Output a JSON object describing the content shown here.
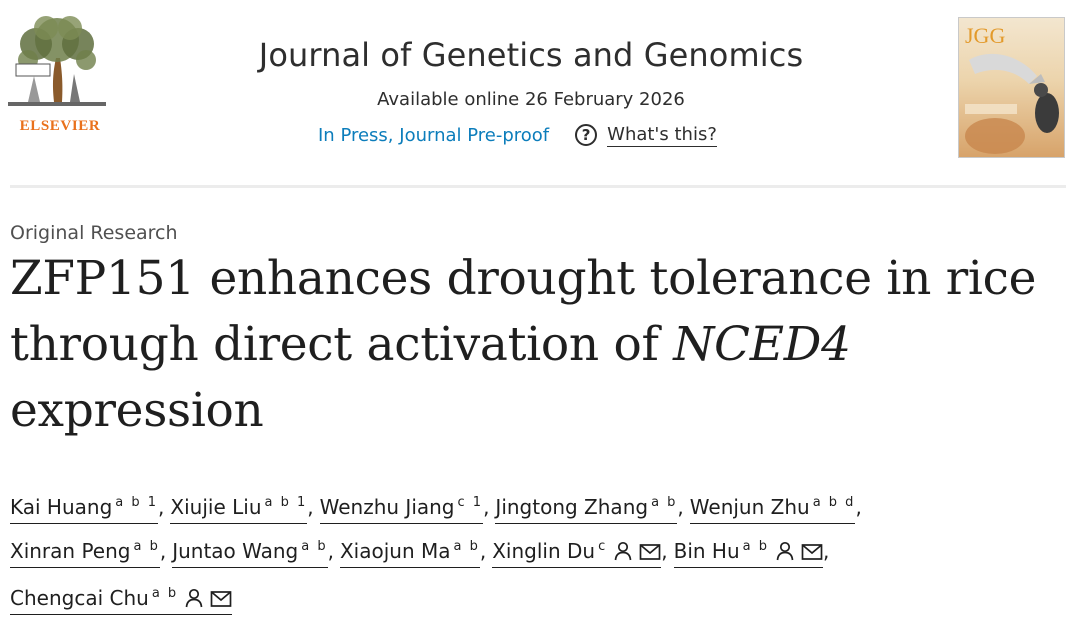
{
  "publisher": {
    "name": "ELSEVIER",
    "logo_icon": "elsevier-tree-icon",
    "brand_color": "#e9711c"
  },
  "journal": {
    "title": "Journal of Genetics and Genomics",
    "available_online": "Available online 26 February 2026",
    "status_link": "In Press, Journal Pre-proof",
    "status_link_color": "#0c7dbb",
    "help_icon": "question-circle-icon",
    "help_label": "What's this?"
  },
  "cover": {
    "label": "JGG",
    "image": "journal-cover-thumbnail"
  },
  "article": {
    "type": "Original Research",
    "title_part1": "ZFP151 enhances drought tolerance in rice through direct activation of ",
    "title_gene": "NCED4",
    "title_part2": "expression"
  },
  "authors": [
    {
      "name": "Kai Huang",
      "affil": "a b 1"
    },
    {
      "name": "Xiujie Liu",
      "affil": "a b 1"
    },
    {
      "name": "Wenzhu Jiang",
      "affil": "c 1"
    },
    {
      "name": "Jingtong Zhang",
      "affil": "a b"
    },
    {
      "name": "Wenjun Zhu",
      "affil": "a b d"
    },
    {
      "name": "Xinran Peng",
      "affil": "a b"
    },
    {
      "name": "Juntao Wang",
      "affil": "a b"
    },
    {
      "name": "Xiaojun Ma",
      "affil": "a b"
    },
    {
      "name": "Xinglin Du",
      "affil": "c",
      "icons": [
        "person-icon",
        "envelope-icon"
      ]
    },
    {
      "name": "Bin Hu",
      "affil": "a b",
      "icons": [
        "person-icon",
        "envelope-icon"
      ]
    },
    {
      "name": "Chengcai Chu",
      "affil": "a b",
      "icons": [
        "person-icon",
        "envelope-icon"
      ]
    }
  ],
  "separator": ","
}
